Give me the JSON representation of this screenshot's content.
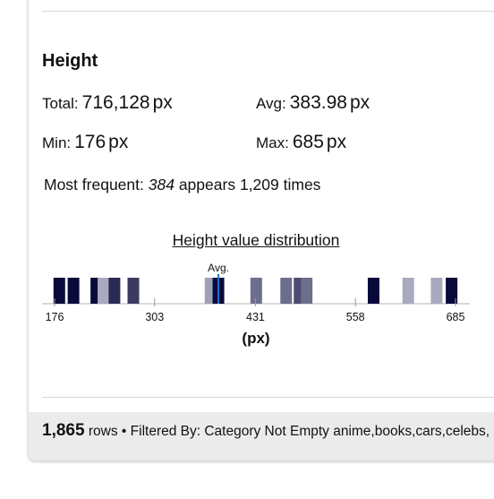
{
  "section": {
    "title": "Height"
  },
  "stats": {
    "total": {
      "label": "Total:",
      "value": "716,128",
      "unit": "px"
    },
    "avg": {
      "label": "Avg:",
      "value": "383.98",
      "unit": "px"
    },
    "min": {
      "label": "Min:",
      "value": "176",
      "unit": "px"
    },
    "max": {
      "label": "Max:",
      "value": "685",
      "unit": "px"
    }
  },
  "most_frequent": {
    "label": "Most frequent:",
    "value": "384",
    "middle": "appears",
    "count": "1,209",
    "suffix": "times"
  },
  "chart_data": {
    "type": "bar",
    "title": "Height value distribution",
    "xlabel": "(px)",
    "xlim": [
      176,
      685
    ],
    "ticks": [
      176,
      303,
      431,
      558,
      685
    ],
    "avg_marker": {
      "label": "Avg.",
      "value": 383.98
    },
    "bars": [
      {
        "x": 182,
        "shade": "#0a0a3a"
      },
      {
        "x": 200,
        "shade": "#0a0a3a"
      },
      {
        "x": 229,
        "shade": "#0a0a3a"
      },
      {
        "x": 238,
        "shade": "#a9a9c0"
      },
      {
        "x": 252,
        "shade": "#2a2a55"
      },
      {
        "x": 276,
        "shade": "#3b3b62"
      },
      {
        "x": 374,
        "shade": "#9fa0b8"
      },
      {
        "x": 384,
        "shade": "#0a0a3a"
      },
      {
        "x": 432,
        "shade": "#6d6e8e"
      },
      {
        "x": 470,
        "shade": "#6d6e8e"
      },
      {
        "x": 487,
        "shade": "#4b4c70"
      },
      {
        "x": 496,
        "shade": "#6d6e8e"
      },
      {
        "x": 581,
        "shade": "#0a0a3a"
      },
      {
        "x": 625,
        "shade": "#a9a9c0"
      },
      {
        "x": 661,
        "shade": "#a9a9c0"
      },
      {
        "x": 680,
        "shade": "#0a0a3a"
      }
    ]
  },
  "footer": {
    "count": "1,865",
    "rows_label": "rows",
    "separator": "•",
    "filter_text": "Filtered By: Category Not Empty anime,books,cars,celebs,"
  }
}
